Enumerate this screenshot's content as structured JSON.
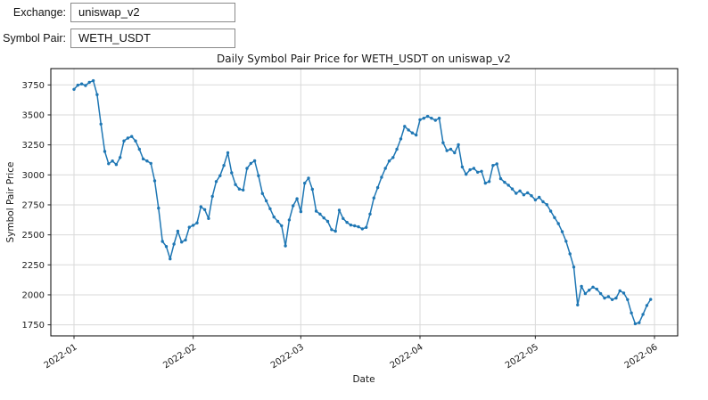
{
  "form": {
    "exchange_label": "Exchange:",
    "exchange_value": "uniswap_v2",
    "symbol_label": "Symbol Pair:",
    "symbol_value": "WETH_USDT"
  },
  "chart_data": {
    "type": "line",
    "title": "Daily Symbol Pair Price for WETH_USDT on uniswap_v2",
    "xlabel": "Date",
    "ylabel": "Symbol Pair Price",
    "start_date": "2022-01-01",
    "x_tick_labels": [
      "2022-01",
      "2022-02",
      "2022-03",
      "2022-04",
      "2022-05",
      "2022-06"
    ],
    "y_ticks": [
      1750,
      2000,
      2250,
      2500,
      2750,
      3000,
      3250,
      3500,
      3750
    ],
    "ylim": [
      1658,
      3886
    ],
    "grid": true,
    "legend": "none",
    "line_color": "#1f77b4",
    "grid_color": "#d9d9d9",
    "marker": "dot",
    "values": [
      3713,
      3748,
      3758,
      3745,
      3772,
      3785,
      3669,
      3423,
      3195,
      3093,
      3116,
      3086,
      3145,
      3283,
      3307,
      3320,
      3283,
      3214,
      3133,
      3116,
      3096,
      2950,
      2723,
      2445,
      2403,
      2300,
      2423,
      2531,
      2440,
      2457,
      2563,
      2580,
      2600,
      2734,
      2710,
      2636,
      2821,
      2944,
      2993,
      3079,
      3184,
      3017,
      2919,
      2882,
      2874,
      3054,
      3096,
      3117,
      2993,
      2845,
      2784,
      2718,
      2649,
      2612,
      2576,
      2408,
      2624,
      2742,
      2801,
      2693,
      2931,
      2973,
      2880,
      2698,
      2673,
      2641,
      2612,
      2543,
      2531,
      2705,
      2636,
      2604,
      2582,
      2575,
      2567,
      2550,
      2562,
      2673,
      2808,
      2894,
      2980,
      3054,
      3116,
      3145,
      3214,
      3300,
      3405,
      3374,
      3350,
      3332,
      3460,
      3472,
      3488,
      3472,
      3455,
      3472,
      3268,
      3202,
      3214,
      3184,
      3251,
      3066,
      3005,
      3042,
      3054,
      3022,
      3030,
      2931,
      2944,
      3079,
      3091,
      2968,
      2938,
      2914,
      2883,
      2846,
      2866,
      2834,
      2851,
      2826,
      2791,
      2813,
      2776,
      2752,
      2698,
      2644,
      2594,
      2526,
      2447,
      2341,
      2231,
      1916,
      2071,
      2010,
      2039,
      2064,
      2047,
      2010,
      1973,
      1985,
      1960,
      1973,
      2034,
      2015,
      1960,
      1849,
      1759,
      1768,
      1837,
      1911,
      1962
    ]
  }
}
